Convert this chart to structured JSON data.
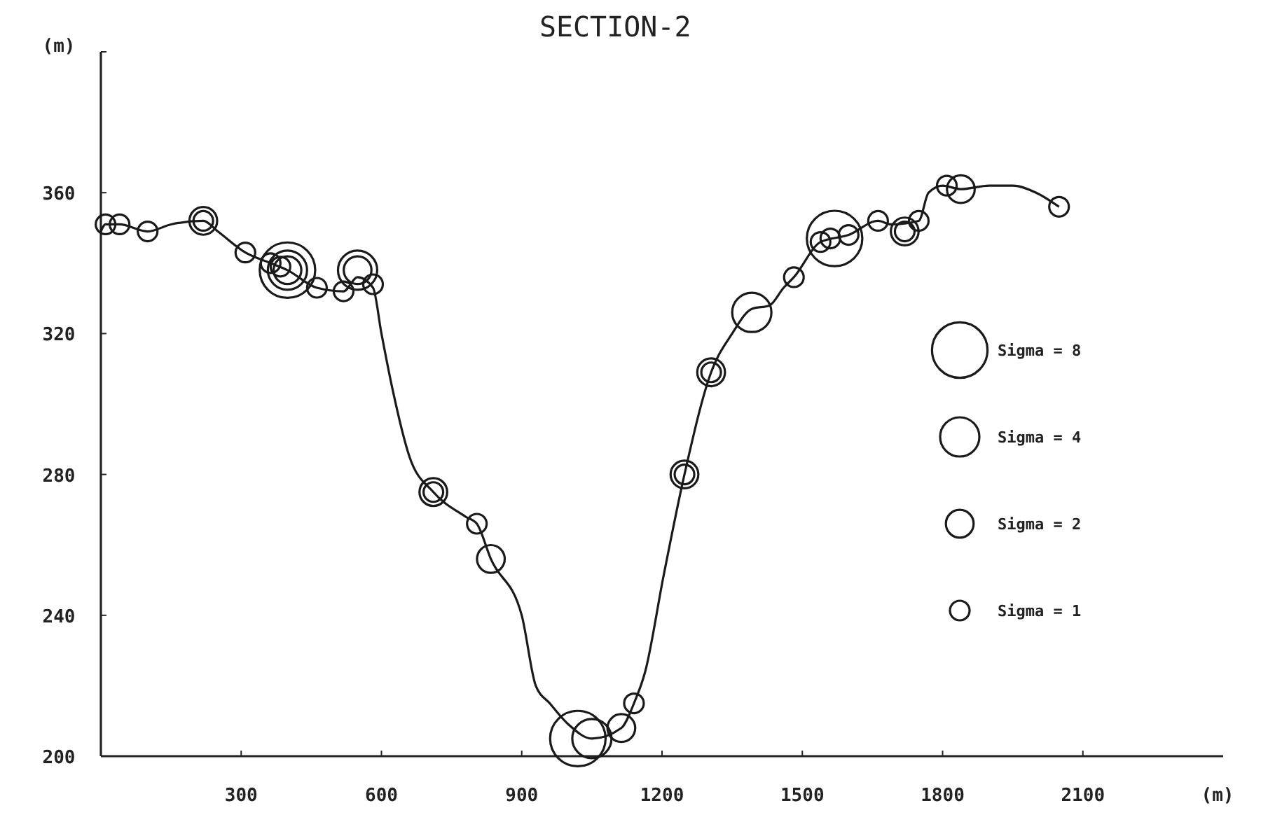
{
  "chart_data": {
    "type": "line",
    "title": "SECTION-2",
    "xlabel": "(m)",
    "ylabel": "(m)",
    "xlim": [
      0,
      2400
    ],
    "ylim": [
      200,
      400
    ],
    "xticks": [
      300,
      600,
      900,
      1200,
      1500,
      1800,
      2100
    ],
    "yticks": [
      200,
      240,
      280,
      320,
      360
    ],
    "grid": false,
    "line_style": "solid",
    "size_legend": [
      {
        "value": 8,
        "label": "Sigma = 8"
      },
      {
        "value": 4,
        "label": "Sigma = 4"
      },
      {
        "value": 2,
        "label": "Sigma = 2"
      },
      {
        "value": 1,
        "label": "Sigma = 1"
      }
    ],
    "series": [
      {
        "color": "#1a1a1a",
        "x": [
          0,
          10,
          40,
          100,
          150,
          219,
          250,
          309,
          363,
          399,
          462,
          519,
          549,
          582,
          600,
          624,
          660,
          711,
          780,
          804,
          834,
          900,
          930,
          960,
          1000,
          1050,
          1113,
          1140,
          1164,
          1203,
          1248,
          1305,
          1350,
          1392,
          1430,
          1460,
          1482,
          1539,
          1599,
          1662,
          1690,
          1749,
          1770,
          1800,
          1839,
          1900,
          1950,
          2000,
          2049
        ],
        "values": [
          349,
          351,
          351,
          349,
          351,
          352,
          349,
          343,
          340,
          338,
          333,
          332,
          336,
          333,
          320,
          304,
          285,
          275,
          268,
          266,
          256,
          240,
          220,
          215,
          209,
          205,
          208,
          215,
          224,
          251,
          280,
          309,
          320,
          327,
          328,
          333,
          336,
          346,
          348,
          352,
          351,
          352,
          360,
          362,
          361,
          362,
          362,
          360,
          356
        ]
      },
      {
        "type": "bubble",
        "color": "#1a1a1a",
        "x": [
          10,
          40,
          100,
          219,
          219,
          309,
          363,
          384,
          399,
          399,
          399,
          462,
          519,
          549,
          549,
          582,
          711,
          711,
          804,
          834,
          1020,
          1050,
          1113,
          1140,
          1248,
          1248,
          1305,
          1305,
          1392,
          1482,
          1569,
          1539,
          1560,
          1599,
          1662,
          1719,
          1719,
          1749,
          1839,
          1809,
          2049
        ],
        "values": [
          351,
          351,
          349,
          352,
          352,
          343,
          340,
          339,
          338,
          338,
          338,
          333,
          332,
          338,
          338,
          334,
          275,
          275,
          266,
          256,
          205,
          205,
          208,
          215,
          280,
          280,
          309,
          309,
          326,
          336,
          347,
          346,
          347,
          348,
          352,
          349,
          349,
          352,
          361,
          362,
          356
        ],
        "sizes": [
          1,
          1,
          1,
          2,
          1,
          1,
          1,
          1,
          8,
          4,
          2,
          1,
          1,
          4,
          2,
          1,
          2,
          1,
          1,
          2,
          8,
          4,
          2,
          1,
          2,
          1,
          2,
          1,
          4,
          1,
          8,
          1,
          1,
          1,
          1,
          2,
          1,
          1,
          2,
          1,
          1
        ]
      }
    ]
  }
}
